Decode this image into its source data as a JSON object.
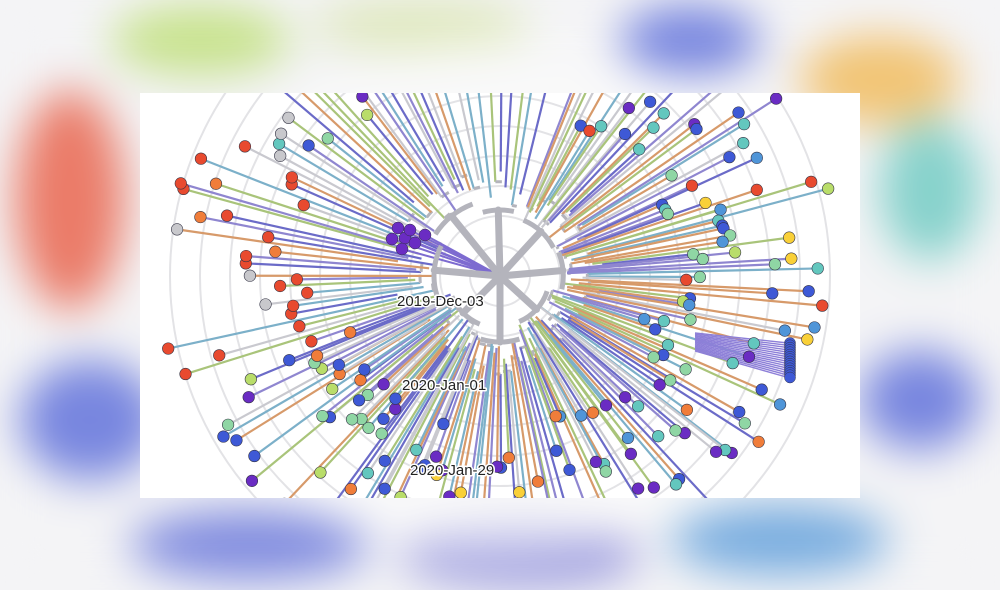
{
  "figure": {
    "description_free": true,
    "time_rings": {
      "labels": [
        "2019-Dec-03",
        "2020-Jan-01",
        "2020-Jan-29"
      ]
    },
    "palette": {
      "background": "#ffffff",
      "backdrop": "#f4f4f6",
      "ring_color": "#e3e3e6",
      "trunk_color": "#b4b4bc",
      "tip_colors": [
        "#e84a2f",
        "#f07d3a",
        "#f9d038",
        "#b9dd6a",
        "#8fd6a4",
        "#63c7be",
        "#4f95d8",
        "#3e59d6",
        "#6a2cc3",
        "#c8c8cc"
      ]
    },
    "tip_stroke": "#333344"
  }
}
